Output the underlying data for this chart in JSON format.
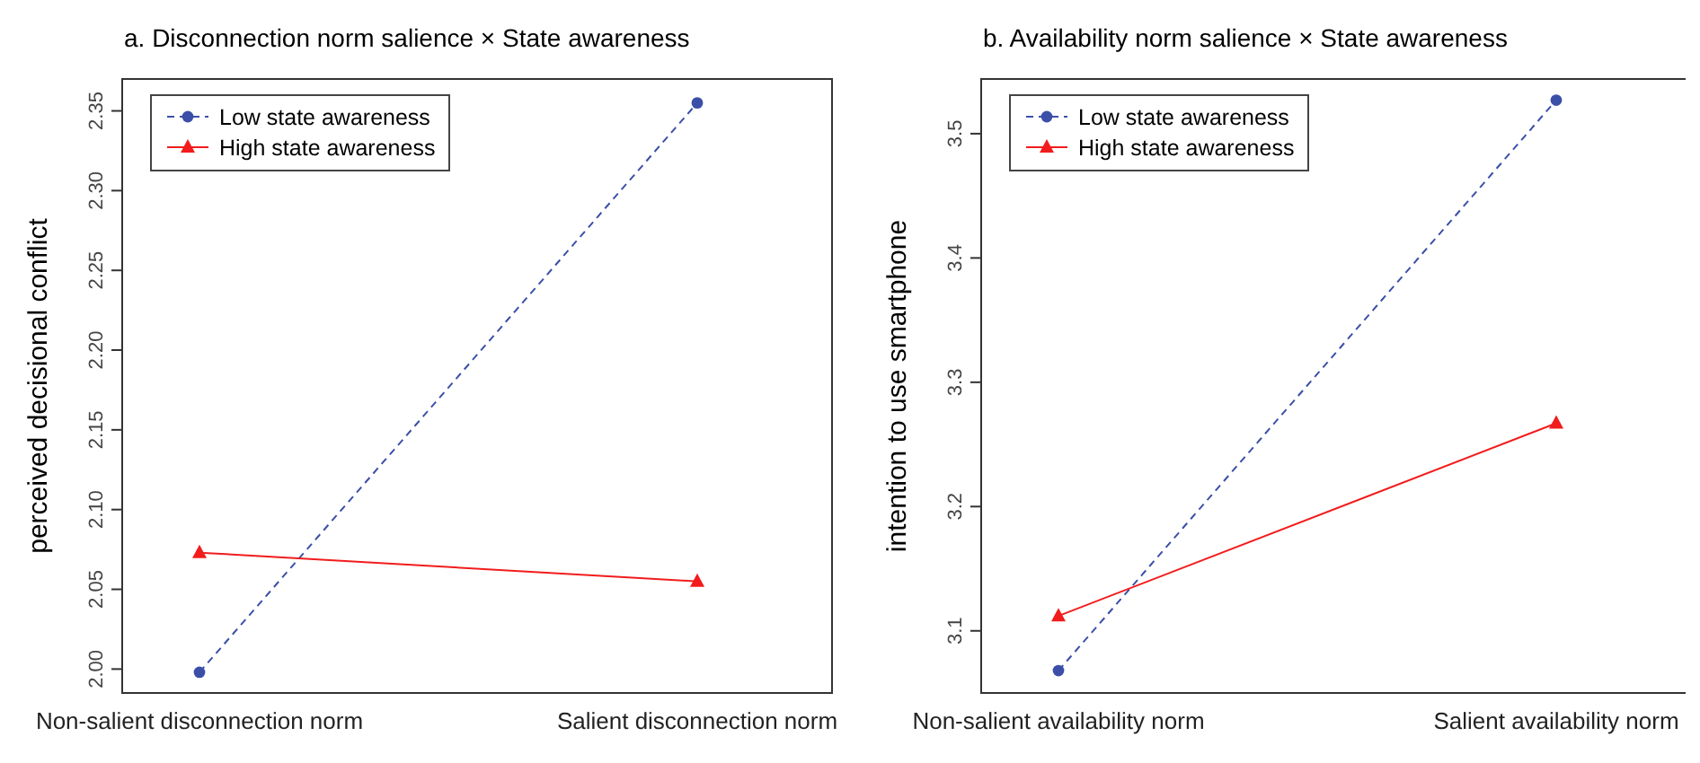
{
  "chart_data": [
    {
      "type": "line",
      "title": "a. Disconnection norm salience × State awareness",
      "ylabel": "perceived decisional conflict",
      "categories": [
        "Non-salient disconnection norm",
        "Salient disconnection norm"
      ],
      "ylim": [
        1.985,
        2.37
      ],
      "yticks": [
        {
          "value": 2.0,
          "label": "2.00"
        },
        {
          "value": 2.05,
          "label": "2.05"
        },
        {
          "value": 2.1,
          "label": "2.10"
        },
        {
          "value": 2.15,
          "label": "2.15"
        },
        {
          "value": 2.2,
          "label": "2.20"
        },
        {
          "value": 2.25,
          "label": "2.25"
        },
        {
          "value": 2.3,
          "label": "2.30"
        },
        {
          "value": 2.35,
          "label": "2.35"
        }
      ],
      "legend": "top left",
      "grid": false,
      "series": [
        {
          "name": "Low state awareness",
          "color": "#3b4fa8",
          "values": [
            1.998,
            2.355
          ],
          "marker": "circle",
          "line_style": "dashed"
        },
        {
          "name": "High state awareness",
          "color": "#f21c1c",
          "values": [
            2.073,
            2.055
          ],
          "marker": "triangle",
          "line_style": "solid"
        }
      ]
    },
    {
      "type": "line",
      "title": "b. Availability norm salience × State awareness",
      "ylabel": "intention to use smartphone",
      "categories": [
        "Non-salient availability norm",
        "Salient availability norm"
      ],
      "ylim": [
        3.05,
        3.544
      ],
      "yticks": [
        3.1,
        3.2,
        3.3,
        3.4,
        3.5
      ],
      "legend": "top left",
      "grid": false,
      "series": [
        {
          "name": "Low state awareness",
          "color": "#3b4fa8",
          "values": [
            3.068,
            3.527
          ],
          "marker": "circle",
          "line_style": "dashed"
        },
        {
          "name": "High state awareness",
          "color": "#f21c1c",
          "values": [
            3.112,
            3.267
          ],
          "marker": "triangle",
          "line_style": "solid"
        }
      ]
    }
  ]
}
